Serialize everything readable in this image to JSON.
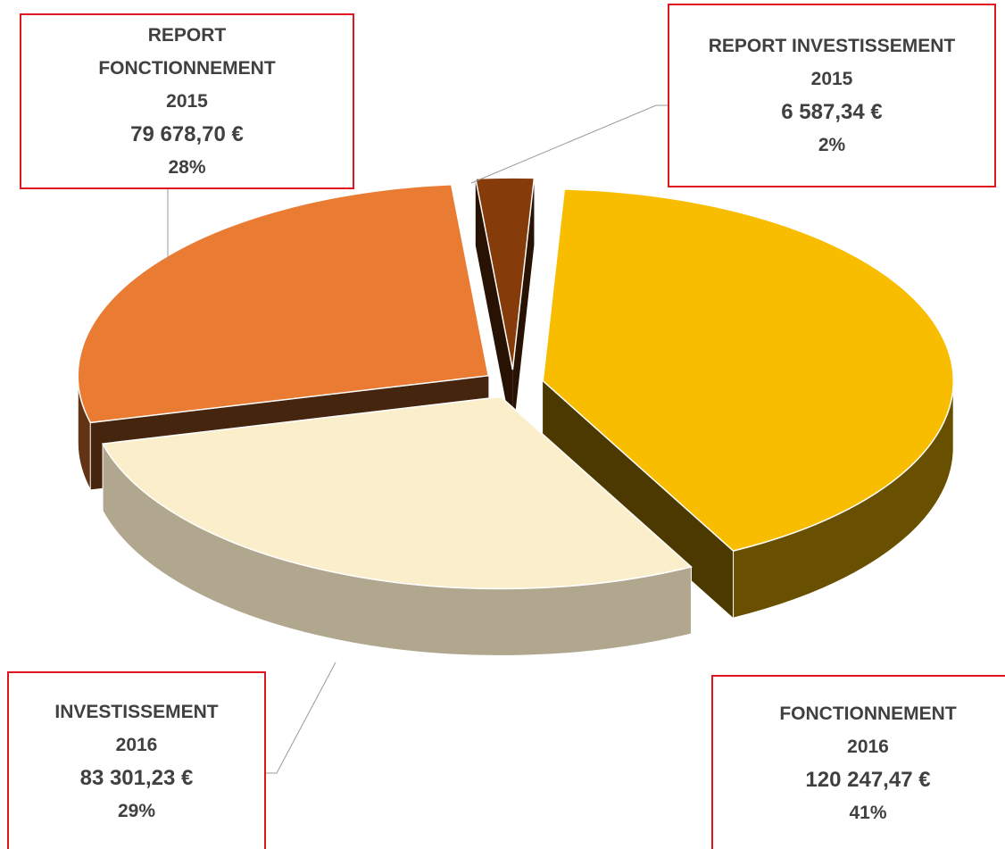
{
  "chart_data": {
    "type": "pie3d",
    "categories": [
      "FONCTIONNEMENT 2016",
      "INVESTISSEMENT 2016",
      "REPORT FONCTIONNEMENT 2015",
      "REPORT INVESTISSEMENT 2015"
    ],
    "values": [
      120247.47,
      83301.23,
      79678.7,
      6587.34
    ],
    "value_labels": [
      "120 247,47 €",
      "83 301,23 €",
      "79 678,70 €",
      "6 587,34 €"
    ],
    "percents": [
      41,
      29,
      28,
      2
    ],
    "percent_labels": [
      "41%",
      "29%",
      "28%",
      "2%"
    ],
    "colors": [
      "#f9bd00",
      "#fbeecb",
      "#ea7b33",
      "#853c0a"
    ]
  }
}
